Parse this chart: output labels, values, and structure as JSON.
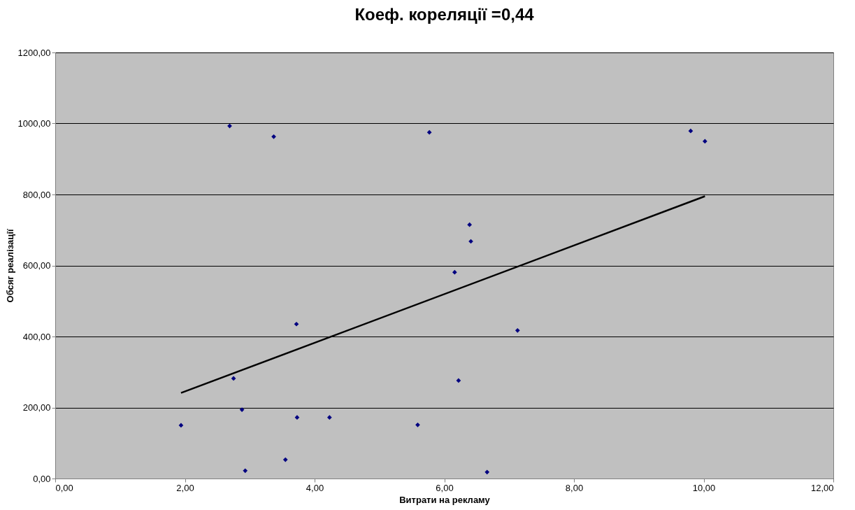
{
  "chart_data": {
    "type": "scatter",
    "title": "Коеф. кореляції =0,44",
    "xlabel": "Витрати на рекламу",
    "ylabel": "Обсяг реалізації",
    "xlim": [
      0,
      12
    ],
    "ylim": [
      0,
      1200
    ],
    "xticks": [
      {
        "value": 0,
        "label": "0,00"
      },
      {
        "value": 2,
        "label": "2,00"
      },
      {
        "value": 4,
        "label": "4,00"
      },
      {
        "value": 6,
        "label": "6,00"
      },
      {
        "value": 8,
        "label": "8,00"
      },
      {
        "value": 10,
        "label": "10,00"
      },
      {
        "value": 12,
        "label": "12,00"
      }
    ],
    "yticks": [
      {
        "value": 0,
        "label": "0,00"
      },
      {
        "value": 200,
        "label": "200,00"
      },
      {
        "value": 400,
        "label": "400,00"
      },
      {
        "value": 600,
        "label": "600,00"
      },
      {
        "value": 800,
        "label": "800,00"
      },
      {
        "value": 1000,
        "label": "1000,00"
      },
      {
        "value": 1200,
        "label": "1200,00"
      }
    ],
    "grid": "y",
    "marker": "diamond",
    "series": [
      {
        "color": "#000080",
        "x": [
          1.94,
          2.69,
          2.75,
          2.88,
          2.93,
          3.37,
          3.55,
          3.72,
          3.73,
          4.23,
          5.59,
          5.77,
          6.16,
          6.22,
          6.39,
          6.41,
          6.66,
          7.13,
          9.8,
          10.02
        ],
        "values": [
          150,
          993,
          282,
          194,
          22,
          963,
          53,
          435,
          172,
          172,
          151,
          975,
          581,
          276,
          715,
          668,
          18,
          417,
          979,
          950
        ]
      },
      {
        "type": "line",
        "color": "#000000",
        "line_style": "solid",
        "marker": "none",
        "x": [
          1.94,
          10.02
        ],
        "values": [
          241,
          795
        ]
      }
    ]
  }
}
